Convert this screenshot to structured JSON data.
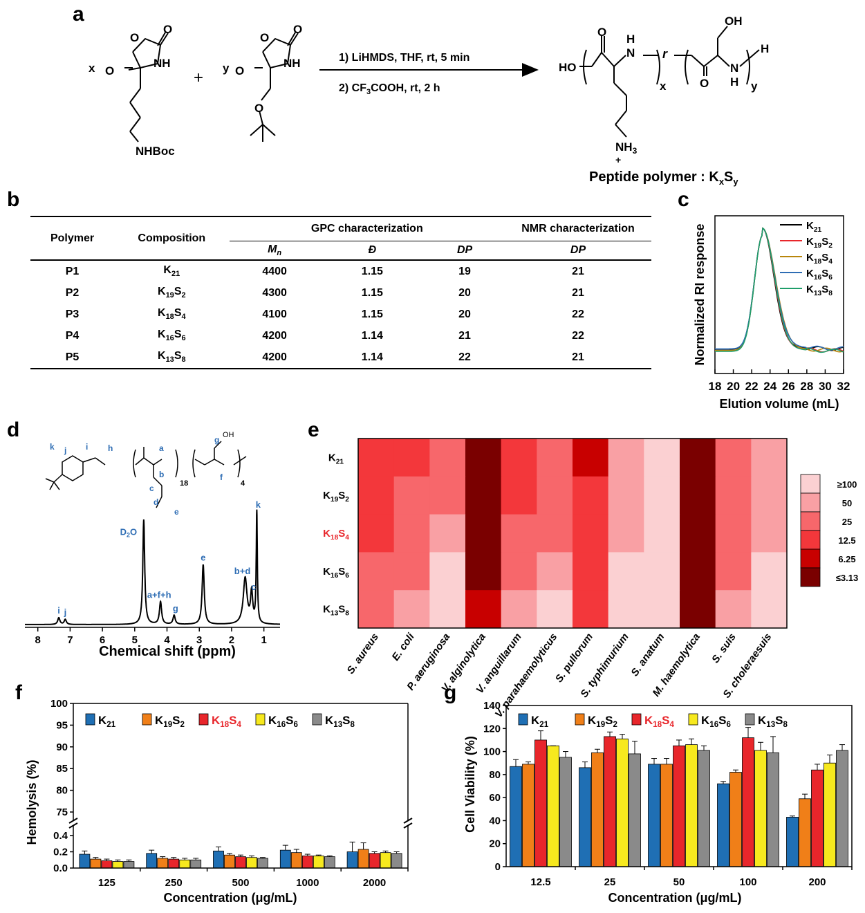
{
  "panels": {
    "a": "a",
    "b": "b",
    "c": "c",
    "d": "d",
    "e": "e",
    "f": "f",
    "g": "g"
  },
  "scheme": {
    "coef_x": "x",
    "coef_y": "y",
    "plus": "+",
    "step1": "1) LiHMDS, THF, rt, 5 min",
    "step2_pre": "2) CF",
    "step2_sub": "3",
    "step2_post": "COOH, rt, 2 h",
    "nhboc": "NHBoc",
    "nh": "NH",
    "o": "O",
    "ho": "HO",
    "oh": "OH",
    "h": "H",
    "n": "N",
    "r": "r",
    "nh3": "NH",
    "nh3_sub": "3",
    "plus_charge": "+",
    "product_label": "Peptide polymer : K",
    "product_sub_x": "x",
    "product_s": "S",
    "product_sub_y": "y"
  },
  "table": {
    "col_polymer": "Polymer",
    "col_composition": "Composition",
    "col_gpc": "GPC characterization",
    "col_nmr": "NMR characterization",
    "sub_mn": "M",
    "sub_mn_sub": "n",
    "sub_d": "Đ",
    "sub_dp": "DP",
    "sub_dp_nmr": "DP",
    "rows": [
      {
        "polymer": "P1",
        "k": "21",
        "s": "",
        "mn": "4400",
        "d": "1.15",
        "dp": "19",
        "dp_nmr": "21"
      },
      {
        "polymer": "P2",
        "k": "19",
        "s": "2",
        "mn": "4300",
        "d": "1.15",
        "dp": "20",
        "dp_nmr": "21"
      },
      {
        "polymer": "P3",
        "k": "18",
        "s": "4",
        "mn": "4100",
        "d": "1.15",
        "dp": "20",
        "dp_nmr": "22"
      },
      {
        "polymer": "P4",
        "k": "16",
        "s": "6",
        "mn": "4200",
        "d": "1.14",
        "dp": "21",
        "dp_nmr": "22"
      },
      {
        "polymer": "P5",
        "k": "13",
        "s": "8",
        "mn": "4200",
        "d": "1.14",
        "dp": "22",
        "dp_nmr": "21"
      }
    ]
  },
  "chart_data": [
    {
      "panel": "c",
      "type": "line",
      "xlabel": "Elution volume (mL)",
      "ylabel": "Normalized RI response",
      "xlim": [
        18,
        32
      ],
      "x_ticks": [
        "18",
        "20",
        "22",
        "24",
        "26",
        "28",
        "30",
        "32"
      ],
      "peak_x": 23.2,
      "series": [
        {
          "k": "21",
          "s": "",
          "color": "#000000"
        },
        {
          "k": "19",
          "s": "2",
          "color": "#e8262b"
        },
        {
          "k": "18",
          "s": "4",
          "color": "#b8860b"
        },
        {
          "k": "16",
          "s": "6",
          "color": "#2e6db4"
        },
        {
          "k": "13",
          "s": "8",
          "color": "#1e9e6a"
        }
      ]
    },
    {
      "panel": "d",
      "type": "line",
      "xlabel": "Chemical shift (ppm)",
      "xlim": [
        8.4,
        0.5
      ],
      "x_ticks": [
        "8",
        "7",
        "6",
        "5",
        "4",
        "3",
        "2",
        "1"
      ],
      "peaks": [
        {
          "label": "i",
          "ppm": 7.35,
          "h": 0.06
        },
        {
          "label": "j",
          "ppm": 7.15,
          "h": 0.045
        },
        {
          "label": "D2O",
          "ppm": 4.72,
          "h": 0.93
        },
        {
          "label": "a+f+h",
          "ppm": 4.2,
          "h": 0.2
        },
        {
          "label": "g",
          "ppm": 3.78,
          "h": 0.08
        },
        {
          "label": "e",
          "ppm": 2.88,
          "h": 0.53
        },
        {
          "label": "b+d",
          "ppm": 1.58,
          "h": 0.41
        },
        {
          "label": "c",
          "ppm": 1.38,
          "h": 0.27
        },
        {
          "label": "k",
          "ppm": 1.22,
          "h": 1.0
        }
      ],
      "struct_labels": {
        "a": "a",
        "b": "b",
        "c": "c",
        "d": "d",
        "e": "e",
        "f": "f",
        "g": "g",
        "h": "h",
        "i": "i",
        "j": "j",
        "k": "k",
        "sub18": "18",
        "sub4": "4",
        "oh": "OH"
      }
    },
    {
      "panel": "e",
      "type": "heatmap",
      "rows": [
        {
          "k": "21",
          "s": ""
        },
        {
          "k": "19",
          "s": "2"
        },
        {
          "k": "18",
          "s": "4"
        },
        {
          "k": "16",
          "s": "6"
        },
        {
          "k": "13",
          "s": "8"
        }
      ],
      "columns": [
        "S. aureus",
        "E. coli",
        "P. aeruginosa",
        "V. alginolytica",
        "V. anguillarum",
        "V. parahaemolyticus",
        "S. pullorum",
        "S. typhimurium",
        "S. anatum",
        "M. haemolytica",
        "S. suis",
        "S. choleraesuis"
      ],
      "values": [
        [
          12.5,
          12.5,
          25,
          3.13,
          12.5,
          25,
          6.25,
          50,
          100,
          3.13,
          25,
          50
        ],
        [
          12.5,
          25,
          25,
          3.13,
          12.5,
          25,
          12.5,
          50,
          100,
          3.13,
          25,
          50
        ],
        [
          12.5,
          25,
          50,
          3.13,
          25,
          25,
          12.5,
          50,
          100,
          3.13,
          25,
          50
        ],
        [
          25,
          25,
          100,
          3.13,
          25,
          50,
          12.5,
          100,
          100,
          3.13,
          25,
          100
        ],
        [
          25,
          50,
          100,
          6.25,
          50,
          100,
          12.5,
          100,
          100,
          3.13,
          50,
          100
        ]
      ],
      "legend": [
        "≥100",
        "50",
        "25",
        "12.5",
        "6.25",
        "≤3.13"
      ],
      "legend_colors": [
        "#fbd0d2",
        "#f9a0a4",
        "#f7676b",
        "#f3373b",
        "#c80000",
        "#7a0000"
      ]
    },
    {
      "panel": "f",
      "type": "bar",
      "xlabel": "Concentration (μg/mL)",
      "ylabel": "Hemolysis (%)",
      "categories": [
        "125",
        "250",
        "500",
        "1000",
        "2000"
      ],
      "y_ticks_low": [
        "0.0",
        "0.2",
        "0.4"
      ],
      "y_ticks_high": [
        "75",
        "80",
        "85",
        "90",
        "95",
        "100"
      ],
      "series": [
        {
          "k": "21",
          "s": "",
          "color": "#1f6fb4",
          "values": [
            0.17,
            0.18,
            0.21,
            0.22,
            0.2
          ],
          "err": [
            0.04,
            0.04,
            0.05,
            0.06,
            0.12
          ]
        },
        {
          "k": "19",
          "s": "2",
          "color": "#f07f18",
          "values": [
            0.11,
            0.12,
            0.16,
            0.19,
            0.23
          ],
          "err": [
            0.02,
            0.02,
            0.02,
            0.04,
            0.08
          ]
        },
        {
          "k": "18",
          "s": "4",
          "color": "#e8262b",
          "values": [
            0.09,
            0.11,
            0.14,
            0.15,
            0.18
          ],
          "err": [
            0.02,
            0.02,
            0.02,
            0.02,
            0.02
          ]
        },
        {
          "k": "16",
          "s": "6",
          "color": "#f7e91e",
          "values": [
            0.08,
            0.1,
            0.13,
            0.15,
            0.19
          ],
          "err": [
            0.02,
            0.02,
            0.02,
            0.01,
            0.02
          ]
        },
        {
          "k": "13",
          "s": "8",
          "color": "#8a8a8a",
          "values": [
            0.08,
            0.1,
            0.12,
            0.14,
            0.18
          ],
          "err": [
            0.02,
            0.02,
            0.01,
            0.01,
            0.02
          ]
        }
      ]
    },
    {
      "panel": "g",
      "type": "bar",
      "xlabel": "Concentration (μg/mL)",
      "ylabel": "Cell Viability (%)",
      "ylim": [
        0,
        140
      ],
      "y_ticks": [
        "0",
        "20",
        "40",
        "60",
        "80",
        "100",
        "120",
        "140"
      ],
      "categories": [
        "12.5",
        "25",
        "50",
        "100",
        "200"
      ],
      "series": [
        {
          "k": "21",
          "s": "",
          "color": "#1f6fb4",
          "values": [
            87,
            86,
            89,
            72,
            43
          ],
          "err": [
            6,
            5,
            5,
            2,
            1
          ]
        },
        {
          "k": "19",
          "s": "2",
          "color": "#f07f18",
          "values": [
            89,
            99,
            89,
            82,
            59
          ],
          "err": [
            2,
            3,
            5,
            2,
            4
          ]
        },
        {
          "k": "18",
          "s": "4",
          "color": "#e8262b",
          "values": [
            110,
            113,
            105,
            112,
            84
          ],
          "err": [
            8,
            4,
            5,
            9,
            5
          ]
        },
        {
          "k": "16",
          "s": "6",
          "color": "#f7e91e",
          "values": [
            105,
            111,
            106,
            101,
            90
          ],
          "err": [
            0,
            4,
            5,
            7,
            7
          ]
        },
        {
          "k": "13",
          "s": "8",
          "color": "#8a8a8a",
          "values": [
            95,
            98,
            101,
            99,
            101
          ],
          "err": [
            5,
            11,
            4,
            14,
            5
          ]
        }
      ]
    }
  ],
  "highlight_color": "#e8262b",
  "legend_k": "K",
  "legend_s": "S"
}
